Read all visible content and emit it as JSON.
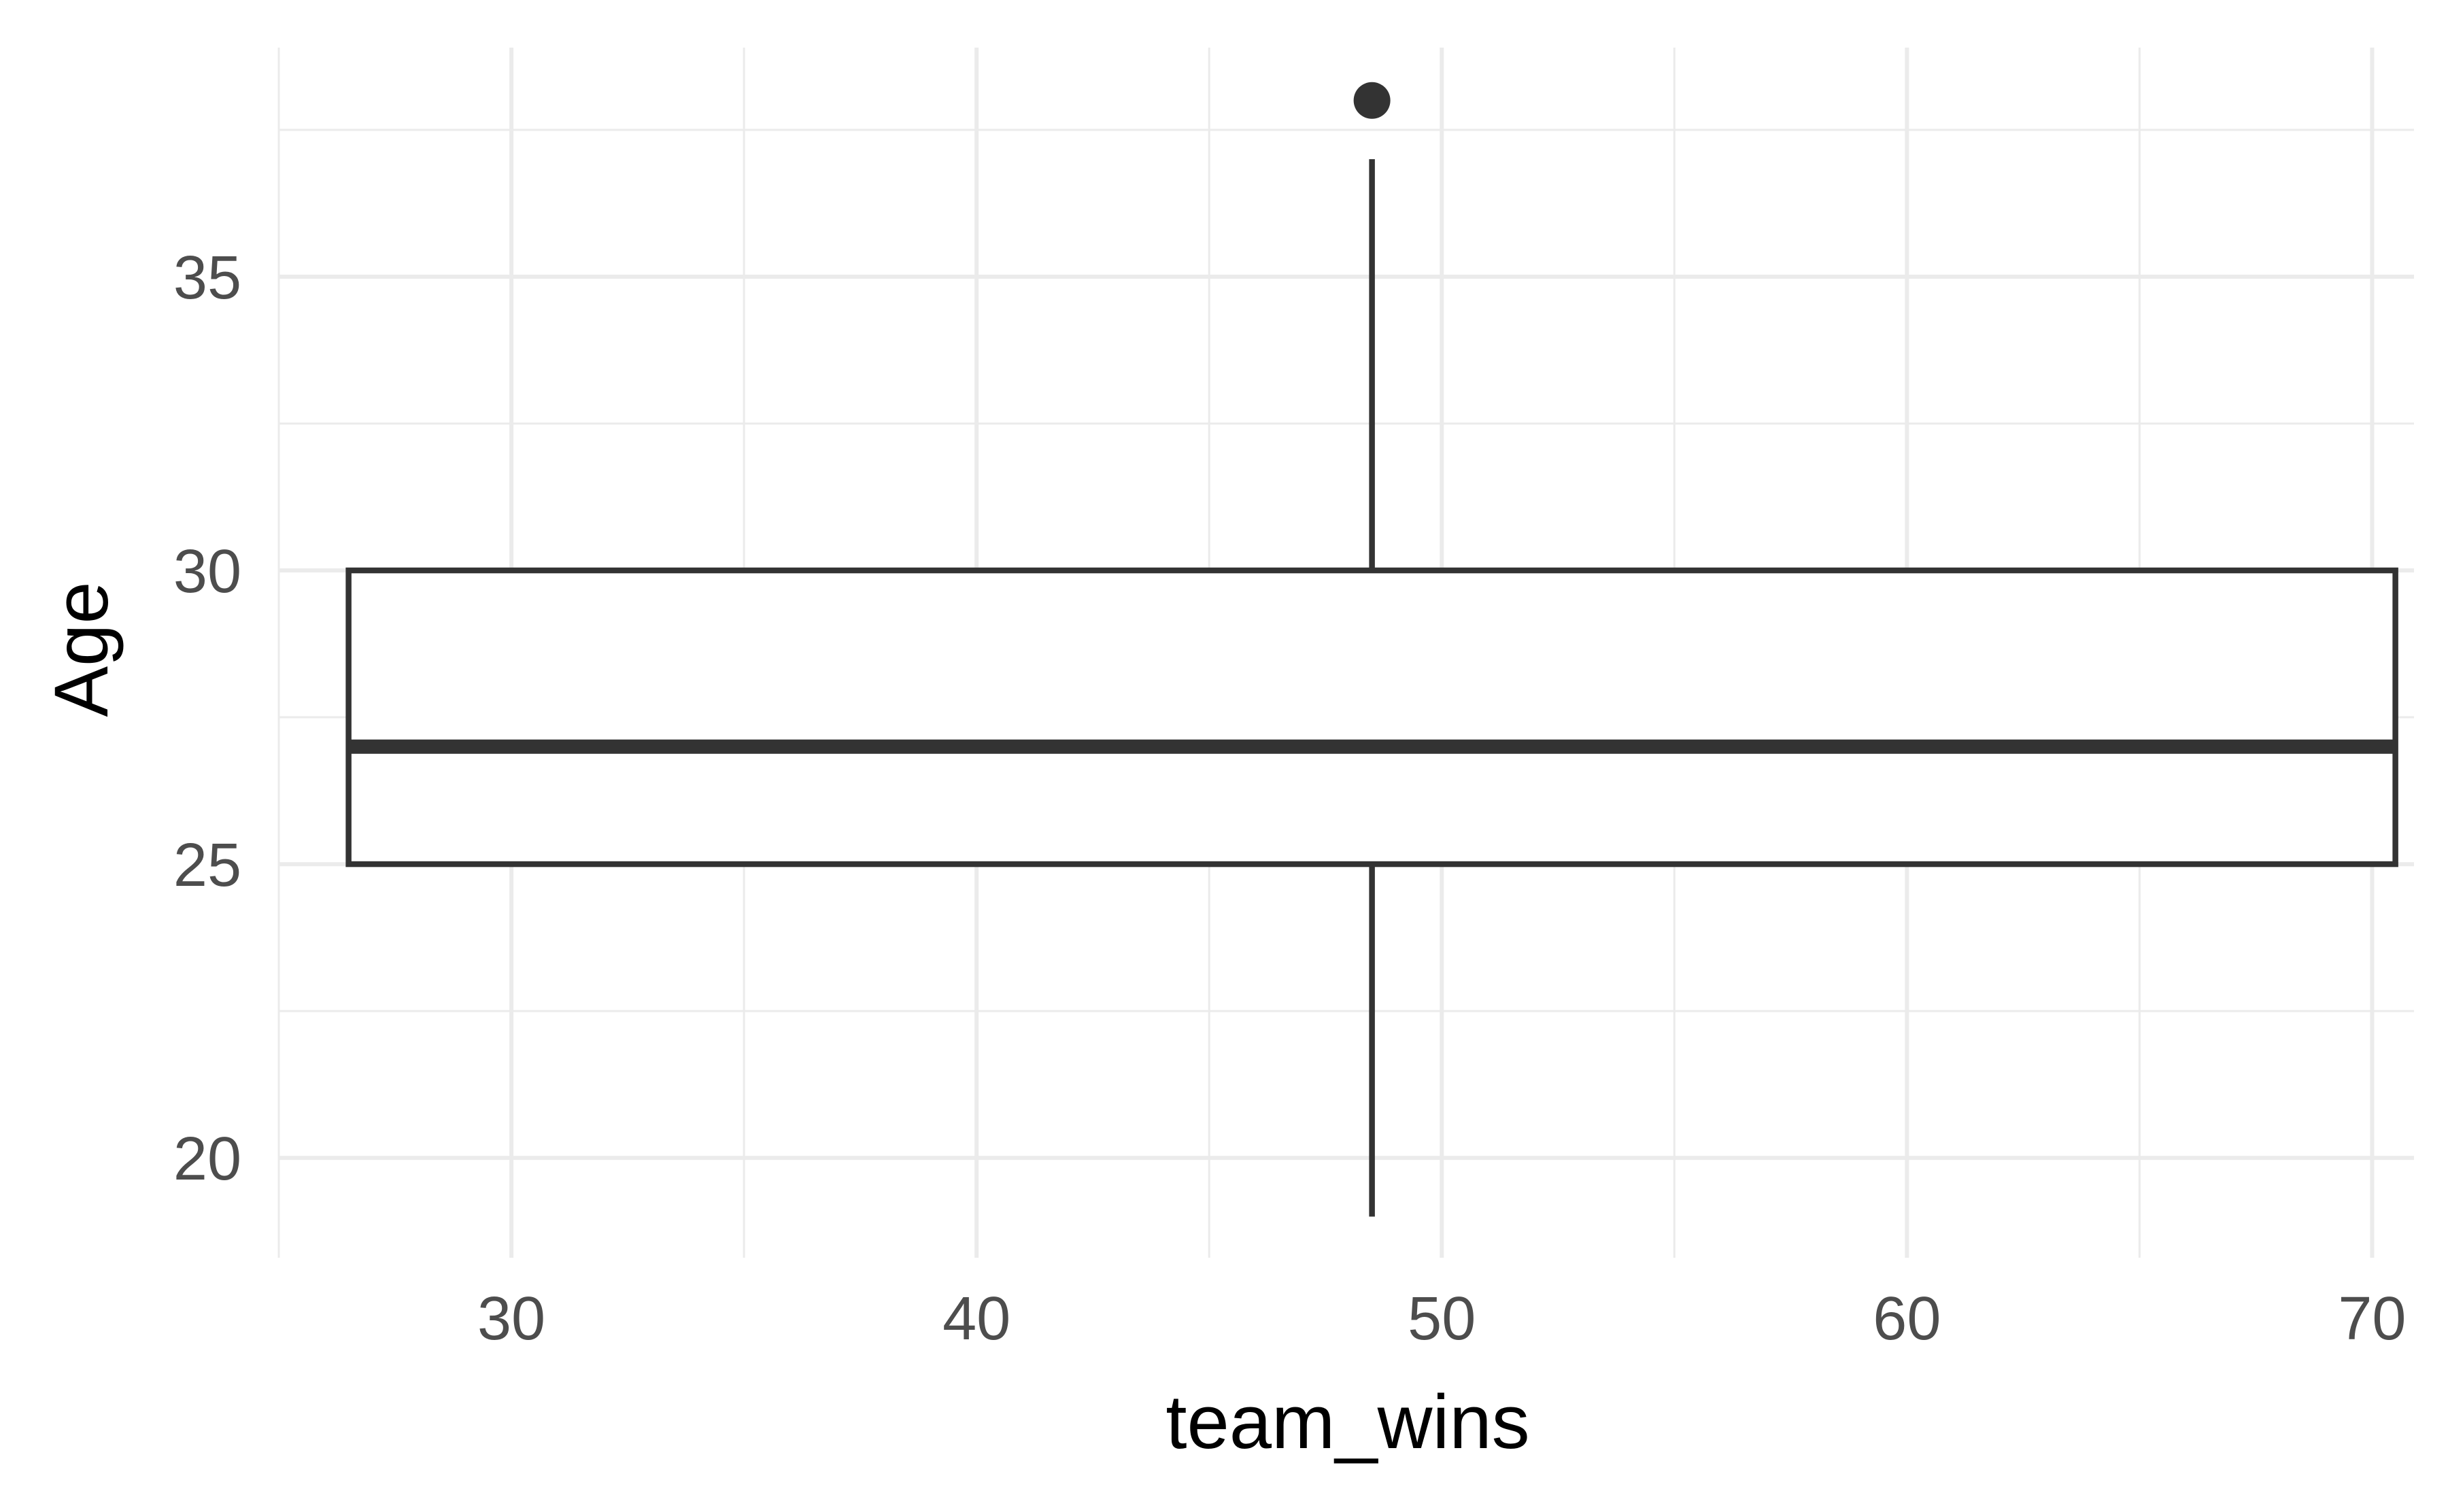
{
  "chart_data": {
    "type": "box",
    "xlabel": "team_wins",
    "ylabel": "Age",
    "xlim": [
      25,
      70.9
    ],
    "ylim": [
      18.3,
      38.9
    ],
    "x_ticks": [
      "30",
      "40",
      "50",
      "60",
      "70"
    ],
    "y_ticks": [
      "20",
      "25",
      "30",
      "35"
    ],
    "grid": true,
    "box": {
      "x_min": 26.5,
      "x_max": 70.5,
      "x_center": 48.5,
      "whisker_low": 19,
      "q1": 25,
      "median": 27,
      "q3": 30,
      "whisker_high": 37,
      "outliers": [
        38
      ]
    },
    "colors": {
      "stroke": "#333333",
      "fill": "#ffffff",
      "grid": "#ebebeb"
    }
  }
}
